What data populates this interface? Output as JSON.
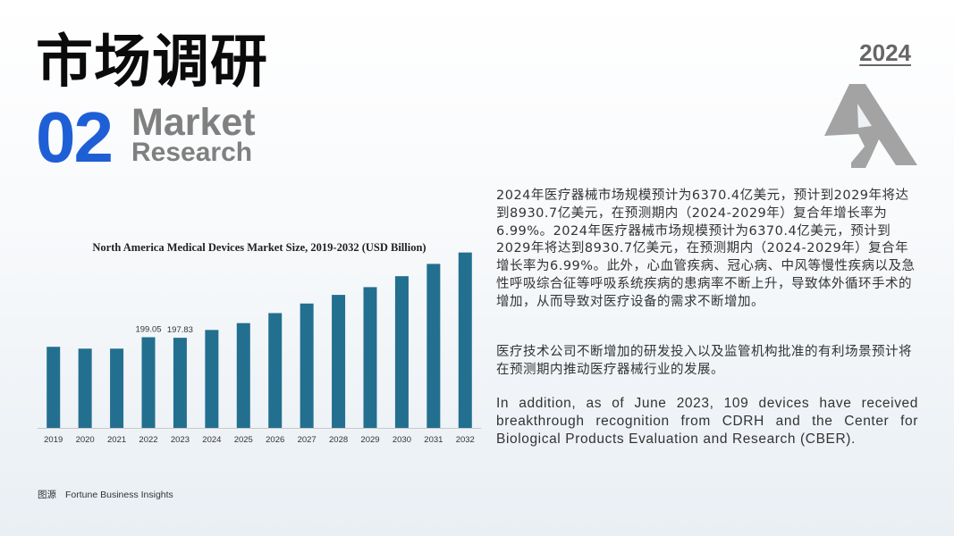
{
  "header": {
    "title_cn": "市场调研",
    "number": "02",
    "title_en_line1": "Market",
    "title_en_line2": "Research",
    "year": "2024"
  },
  "logo": {
    "icon": "stylized-a-logo-icon",
    "color": "#a3a3a3"
  },
  "chart_data": {
    "type": "bar",
    "title": "North America Medical Devices Market Size, 2019-2032 (USD Billion)",
    "categories": [
      "2019",
      "2020",
      "2021",
      "2022",
      "2023",
      "2024",
      "2025",
      "2026",
      "2027",
      "2028",
      "2029",
      "2030",
      "2031",
      "2032"
    ],
    "values": [
      178,
      174,
      174,
      199.05,
      197.83,
      215,
      230,
      252,
      273,
      292,
      309,
      333,
      360,
      385
    ],
    "data_labels": [
      "",
      "",
      "",
      "199.05",
      "197.83",
      "",
      "",
      "",
      "",
      "",
      "",
      "",
      "",
      ""
    ],
    "ylim": [
      0,
      400
    ],
    "bar_color": "#236f8f",
    "xlabel": "",
    "ylabel": "",
    "grid": false
  },
  "source": {
    "label": "图源",
    "name": "Fortune Business Insights"
  },
  "paragraphs": {
    "p1": "2024年医疗器械市场规模预计为6370.4亿美元，预计到2029年将达到8930.7亿美元，在预测期内（2024-2029年）复合年增长率为6.99%。2024年医疗器械市场规模预计为6370.4亿美元，预计到2029年将达到8930.7亿美元，在预测期内（2024-2029年）复合年增长率为6.99%。此外，心血管疾病、冠心病、中风等慢性疾病以及急性呼吸综合征等呼吸系统疾病的患病率不断上升，导致体外循环手术的增加，从而导致对医疗设备的需求不断增加。",
    "p2": "医疗技术公司不断增加的研发投入以及监管机构批准的有利场景预计将在预测期内推动医疗器械行业的发展。",
    "p3": "In addition, as of June 2023, 109 devices have received breakthrough recognition from CDRH and the Center for Biological Products Evaluation and Research (CBER)."
  }
}
